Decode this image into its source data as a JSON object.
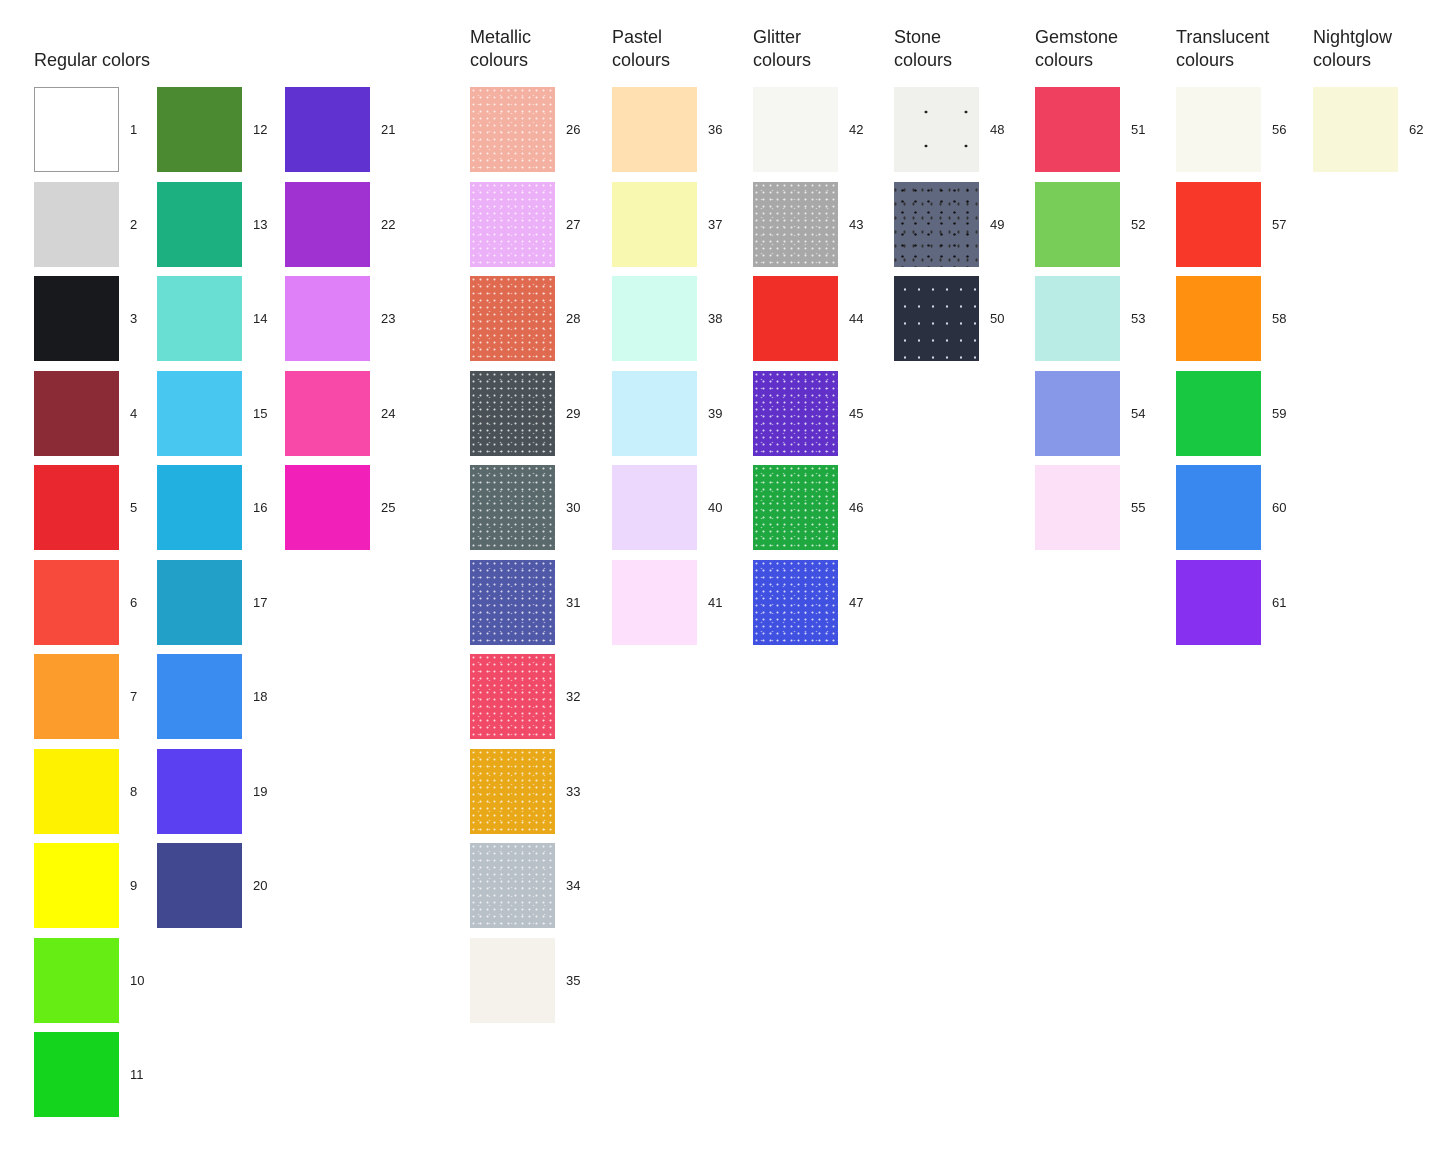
{
  "groups": [
    {
      "id": "regular",
      "title": [
        "Regular colors"
      ],
      "columns": [
        [
          {
            "n": "1",
            "color": "#ffffff"
          },
          {
            "n": "2",
            "color": "#d4d4d4"
          },
          {
            "n": "3",
            "color": "#17191d"
          },
          {
            "n": "4",
            "color": "#8a2b36"
          },
          {
            "n": "5",
            "color": "#e8282e"
          },
          {
            "n": "6",
            "color": "#f84a3c"
          },
          {
            "n": "7",
            "color": "#fb9c2c"
          },
          {
            "n": "8",
            "color": "#fff200"
          },
          {
            "n": "9",
            "color": "#ffff00"
          },
          {
            "n": "10",
            "color": "#66ee14"
          },
          {
            "n": "11",
            "color": "#14d41e"
          }
        ],
        [
          {
            "n": "12",
            "color": "#4b8a30"
          },
          {
            "n": "13",
            "color": "#1caf80"
          },
          {
            "n": "14",
            "color": "#68dfd2"
          },
          {
            "n": "15",
            "color": "#48c8f0"
          },
          {
            "n": "16",
            "color": "#22b0e0"
          },
          {
            "n": "17",
            "color": "#22a0c8"
          },
          {
            "n": "18",
            "color": "#3a8cf0"
          },
          {
            "n": "19",
            "color": "#5a40f0"
          },
          {
            "n": "20",
            "color": "#424890"
          }
        ],
        [
          {
            "n": "21",
            "color": "#6032d0"
          },
          {
            "n": "22",
            "color": "#a032d2"
          },
          {
            "n": "23",
            "color": "#e080f8"
          },
          {
            "n": "24",
            "color": "#f848a8"
          },
          {
            "n": "25",
            "color": "#f020b8"
          }
        ]
      ]
    },
    {
      "id": "metallic",
      "title": [
        "Metallic",
        "colours"
      ],
      "columns": [
        [
          {
            "n": "26",
            "color": "#f4b0a0",
            "texture": "sparkle"
          },
          {
            "n": "27",
            "color": "#ecb0f8",
            "texture": "sparkle"
          },
          {
            "n": "28",
            "color": "#e06a50",
            "texture": "sparkle"
          },
          {
            "n": "29",
            "color": "#4a5258",
            "texture": "sparkle"
          },
          {
            "n": "30",
            "color": "#5a6a6c",
            "texture": "sparkle"
          },
          {
            "n": "31",
            "color": "#5058a8",
            "texture": "sparkle"
          },
          {
            "n": "32",
            "color": "#f04a68",
            "texture": "sparkle"
          },
          {
            "n": "33",
            "color": "#e8a818",
            "texture": "sparkle"
          },
          {
            "n": "34",
            "color": "#b8c0c8",
            "texture": "sparkle"
          },
          {
            "n": "35",
            "color": "#f4f2ea"
          }
        ]
      ]
    },
    {
      "id": "pastel",
      "title": [
        "Pastel",
        "colours"
      ],
      "columns": [
        [
          {
            "n": "36",
            "color": "#ffe0b0"
          },
          {
            "n": "37",
            "color": "#f8f8b0"
          },
          {
            "n": "38",
            "color": "#d0fcf0"
          },
          {
            "n": "39",
            "color": "#c8f0fc"
          },
          {
            "n": "40",
            "color": "#ecd8fc"
          },
          {
            "n": "41",
            "color": "#fce0fc"
          }
        ]
      ]
    },
    {
      "id": "glitter",
      "title": [
        "Glitter",
        "colours"
      ],
      "columns": [
        [
          {
            "n": "42",
            "color": "#f6f6f2"
          },
          {
            "n": "43",
            "color": "#a8a8a8",
            "texture": "sparkle"
          },
          {
            "n": "44",
            "color": "#f03028"
          },
          {
            "n": "45",
            "color": "#6030c8",
            "texture": "sparkle"
          },
          {
            "n": "46",
            "color": "#20a840",
            "texture": "sparkle"
          },
          {
            "n": "47",
            "color": "#4050e0",
            "texture": "sparkle"
          }
        ]
      ]
    },
    {
      "id": "stone",
      "title": [
        "Stone",
        "colours"
      ],
      "columns": [
        [
          {
            "n": "48",
            "color": "#f0f0ec",
            "texture": "stone-light"
          },
          {
            "n": "49",
            "color": "#606880",
            "texture": "stone"
          },
          {
            "n": "50",
            "color": "#2a3040",
            "texture": "stone-dark"
          }
        ]
      ]
    },
    {
      "id": "gemstone",
      "title": [
        "Gemstone",
        "colours"
      ],
      "columns": [
        [
          {
            "n": "51",
            "color": "#f04060"
          },
          {
            "n": "52",
            "color": "#78cc58"
          },
          {
            "n": "53",
            "color": "#b8ece4"
          },
          {
            "n": "54",
            "color": "#8898e8"
          },
          {
            "n": "55",
            "color": "#fce0f8"
          }
        ]
      ]
    },
    {
      "id": "translucent",
      "title": [
        "Translucent",
        "colours"
      ],
      "columns": [
        [
          {
            "n": "56",
            "color": "#f8f8ee"
          },
          {
            "n": "57",
            "color": "#f83828"
          },
          {
            "n": "58",
            "color": "#ff9010"
          },
          {
            "n": "59",
            "color": "#18c840"
          },
          {
            "n": "60",
            "color": "#3888f0"
          },
          {
            "n": "61",
            "color": "#8830f0"
          }
        ]
      ]
    },
    {
      "id": "nightglow",
      "title": [
        "Nightglow",
        "colours"
      ],
      "columns": [
        [
          {
            "n": "62",
            "color": "#f8f8d8"
          }
        ]
      ]
    }
  ]
}
